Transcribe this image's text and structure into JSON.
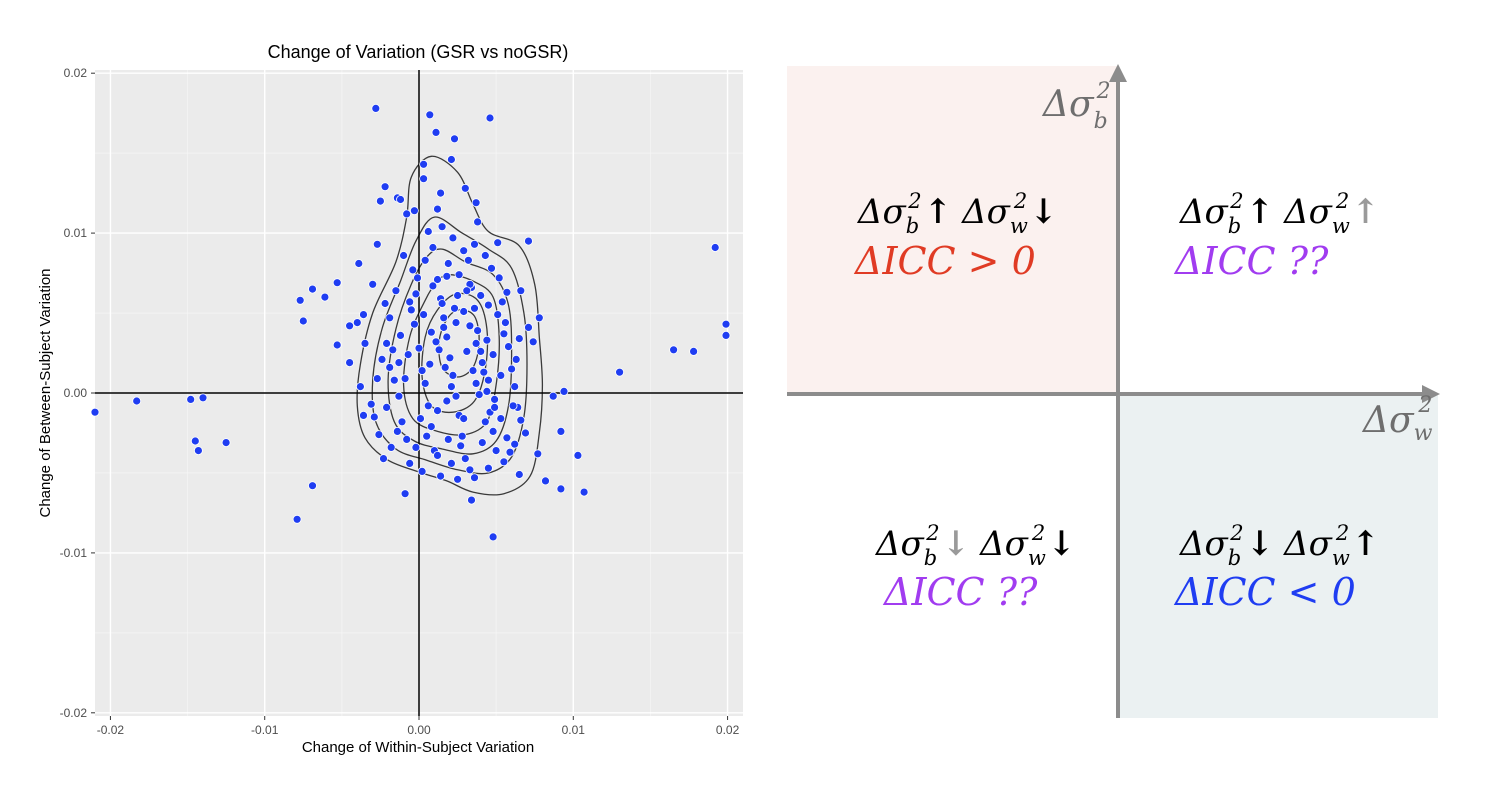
{
  "chart_data": {
    "type": "scatter",
    "title": "Change of Variation (GSR vs noGSR)",
    "xlabel": "Change of Within-Subject Variation",
    "ylabel": "Change of Between-Subject Variation",
    "xlim": [
      -0.021,
      0.021
    ],
    "ylim": [
      -0.0202,
      0.0202
    ],
    "x_ticks": [
      -0.02,
      -0.01,
      0,
      0.01,
      0.02
    ],
    "x_tick_labels": [
      "-0.02",
      "-0.01",
      "0.00",
      "0.01",
      "0.02"
    ],
    "y_ticks": [
      -0.02,
      -0.01,
      0,
      0.01,
      0.02
    ],
    "y_tick_labels": [
      "-0.02",
      "-0.01",
      "0.00",
      "0.01",
      "0.02"
    ],
    "grid": true,
    "background": "#ebebeb",
    "point_color": "#1f3df2",
    "points": [
      [
        -0.021,
        -0.0012
      ],
      [
        -0.0183,
        -0.0005
      ],
      [
        -0.0148,
        -0.0004
      ],
      [
        -0.014,
        -0.0003
      ],
      [
        -0.0145,
        -0.003
      ],
      [
        -0.0143,
        -0.0036
      ],
      [
        -0.0125,
        -0.0031
      ],
      [
        -0.0079,
        -0.0079
      ],
      [
        -0.0069,
        -0.0058
      ],
      [
        -0.0077,
        0.0058
      ],
      [
        -0.0075,
        0.0045
      ],
      [
        -0.0069,
        0.0065
      ],
      [
        -0.0061,
        0.006
      ],
      [
        -0.0053,
        0.0069
      ],
      [
        -0.0053,
        0.003
      ],
      [
        -0.0039,
        0.0081
      ],
      [
        -0.0028,
        0.0178
      ],
      [
        -0.0022,
        0.0129
      ],
      [
        -0.0025,
        0.012
      ],
      [
        -0.0014,
        0.0122
      ],
      [
        -0.0012,
        0.0121
      ],
      [
        -0.0008,
        0.0112
      ],
      [
        -0.0003,
        0.0114
      ],
      [
        -0.0027,
        0.0093
      ],
      [
        -0.0045,
        0.0042
      ],
      [
        -0.004,
        0.0044
      ],
      [
        -0.0036,
        0.0049
      ],
      [
        -0.0035,
        0.0031
      ],
      [
        -0.0045,
        0.0019
      ],
      [
        -0.0038,
        0.0004
      ],
      [
        -0.0036,
        -0.0014
      ],
      [
        -0.0029,
        -0.0015
      ],
      [
        -0.0023,
        -0.0041
      ],
      [
        -0.0009,
        -0.0063
      ],
      [
        0.0007,
        0.0174
      ],
      [
        0.0011,
        0.0163
      ],
      [
        0.0023,
        0.0159
      ],
      [
        0.0046,
        0.0172
      ],
      [
        0.0021,
        0.0146
      ],
      [
        0.0003,
        0.0143
      ],
      [
        0.0003,
        0.0134
      ],
      [
        0.0014,
        0.0125
      ],
      [
        0.003,
        0.0128
      ],
      [
        0.0037,
        0.0119
      ],
      [
        0.0071,
        0.0095
      ],
      [
        0.0192,
        0.0091
      ],
      [
        0.0199,
        0.0043
      ],
      [
        0.0199,
        0.0036
      ],
      [
        0.0165,
        0.0027
      ],
      [
        0.0178,
        0.0026
      ],
      [
        0.013,
        0.0013
      ],
      [
        0.0094,
        0.0001
      ],
      [
        0.0087,
        -0.0002
      ],
      [
        0.0092,
        -0.0024
      ],
      [
        0.0103,
        -0.0039
      ],
      [
        0.0107,
        -0.0062
      ],
      [
        0.0092,
        -0.006
      ],
      [
        0.0048,
        -0.009
      ],
      [
        0.0034,
        -0.0067
      ],
      [
        0.0078,
        0.0047
      ],
      [
        0.0074,
        0.0032
      ],
      [
        0.0066,
        0.0064
      ],
      [
        0.0071,
        0.0041
      ],
      [
        0.0069,
        -0.0025
      ],
      [
        0.0077,
        -0.0038
      ],
      [
        0.0082,
        -0.0055
      ],
      [
        0.0065,
        -0.0051
      ],
      [
        0.0062,
        -0.0032
      ],
      [
        -0.003,
        0.0068
      ],
      [
        -0.0022,
        0.0056
      ],
      [
        -0.0021,
        0.0031
      ],
      [
        -0.0019,
        0.0016
      ],
      [
        -0.0016,
        0.0008
      ],
      [
        -0.0013,
        -0.0002
      ],
      [
        -0.0011,
        -0.0018
      ],
      [
        -0.0008,
        -0.0029
      ],
      [
        -0.0005,
        0.0052
      ],
      [
        -0.0003,
        0.0043
      ],
      [
        0.0,
        0.0028
      ],
      [
        0.0002,
        0.0014
      ],
      [
        0.0004,
        0.0006
      ],
      [
        0.0006,
        -0.0008
      ],
      [
        0.0008,
        -0.0021
      ],
      [
        0.001,
        -0.0036
      ],
      [
        0.0012,
        0.0071
      ],
      [
        0.0014,
        0.0059
      ],
      [
        0.0016,
        0.0047
      ],
      [
        0.0018,
        0.0035
      ],
      [
        0.002,
        0.0022
      ],
      [
        0.0022,
        0.0011
      ],
      [
        0.0024,
        -0.0002
      ],
      [
        0.0026,
        -0.0014
      ],
      [
        0.0028,
        -0.0027
      ],
      [
        0.003,
        -0.0041
      ],
      [
        0.0032,
        0.0083
      ],
      [
        0.0034,
        0.0066
      ],
      [
        0.0036,
        0.0053
      ],
      [
        0.0038,
        0.0039
      ],
      [
        0.004,
        0.0026
      ],
      [
        0.0042,
        0.0013
      ],
      [
        0.0044,
        0.0001
      ],
      [
        0.0046,
        -0.0012
      ],
      [
        0.0048,
        -0.0024
      ],
      [
        0.005,
        -0.0036
      ],
      [
        0.0052,
        0.0072
      ],
      [
        0.0054,
        0.0057
      ],
      [
        0.0056,
        0.0044
      ],
      [
        0.0058,
        0.0029
      ],
      [
        0.006,
        0.0015
      ],
      [
        0.0062,
        0.0004
      ],
      [
        0.0064,
        -0.0009
      ],
      [
        0.0066,
        -0.0017
      ],
      [
        -0.0012,
        0.0036
      ],
      [
        -0.0007,
        0.0024
      ],
      [
        -0.0002,
        0.0062
      ],
      [
        0.0003,
        0.0049
      ],
      [
        0.0008,
        0.0038
      ],
      [
        0.0013,
        0.0027
      ],
      [
        0.0017,
        0.0016
      ],
      [
        0.0021,
        0.0004
      ],
      [
        0.0025,
        0.0061
      ],
      [
        0.0029,
        0.0051
      ],
      [
        0.0033,
        0.0042
      ],
      [
        0.0037,
        0.0031
      ],
      [
        0.0041,
        0.0019
      ],
      [
        0.0045,
        0.0008
      ],
      [
        0.0049,
        -0.0004
      ],
      [
        0.0053,
        -0.0016
      ],
      [
        0.0057,
        -0.0028
      ],
      [
        0.0015,
        0.0104
      ],
      [
        0.0022,
        0.0097
      ],
      [
        0.0029,
        0.0089
      ],
      [
        0.0036,
        0.0093
      ],
      [
        0.0043,
        0.0086
      ],
      [
        0.0047,
        0.0078
      ],
      [
        0.0009,
        0.0091
      ],
      [
        0.0004,
        0.0083
      ],
      [
        -0.0004,
        0.0077
      ],
      [
        0.0019,
        0.0081
      ],
      [
        0.0026,
        0.0074
      ],
      [
        0.0033,
        0.0068
      ],
      [
        0.004,
        0.0061
      ],
      [
        0.0045,
        0.0055
      ],
      [
        0.0051,
        0.0049
      ],
      [
        0.0055,
        0.0037
      ],
      [
        -0.0015,
        0.0064
      ],
      [
        -0.0019,
        0.0047
      ],
      [
        -0.0024,
        0.0021
      ],
      [
        -0.0027,
        0.0009
      ],
      [
        -0.0031,
        -0.0007
      ],
      [
        -0.0026,
        -0.0026
      ],
      [
        -0.0018,
        -0.0034
      ],
      [
        -0.0006,
        -0.0044
      ],
      [
        0.0002,
        -0.0049
      ],
      [
        0.0014,
        -0.0052
      ],
      [
        0.0025,
        -0.0054
      ],
      [
        0.0036,
        -0.0053
      ],
      [
        0.0045,
        -0.0047
      ],
      [
        0.0055,
        -0.0043
      ],
      [
        0.0059,
        -0.0037
      ],
      [
        0.0061,
        -0.0008
      ],
      [
        0.0063,
        0.0021
      ],
      [
        0.0065,
        0.0034
      ],
      [
        0.0057,
        0.0063
      ],
      [
        0.0012,
        -0.0011
      ],
      [
        0.0018,
        -0.0005
      ],
      [
        0.0007,
        0.0018
      ],
      [
        0.0011,
        0.0032
      ],
      [
        0.0016,
        0.0041
      ],
      [
        0.0023,
        0.0053
      ],
      [
        0.0031,
        0.0026
      ],
      [
        0.0035,
        0.0014
      ],
      [
        0.0039,
        -0.0001
      ],
      [
        0.0043,
        -0.0018
      ],
      [
        0.0027,
        -0.0033
      ],
      [
        0.0019,
        -0.0029
      ],
      [
        -0.0009,
        0.0009
      ],
      [
        -0.0013,
        0.0019
      ],
      [
        0.0001,
        -0.0016
      ],
      [
        0.0005,
        -0.0027
      ],
      [
        0.0021,
        -0.0044
      ],
      [
        0.0033,
        -0.0048
      ],
      [
        0.0041,
        -0.0031
      ],
      [
        0.0049,
        -0.0009
      ],
      [
        0.0053,
        0.0011
      ],
      [
        0.0048,
        0.0024
      ],
      [
        0.0024,
        0.0044
      ],
      [
        0.0015,
        0.0056
      ],
      [
        0.0009,
        0.0067
      ],
      [
        -0.0001,
        0.0072
      ],
      [
        -0.0006,
        0.0057
      ],
      [
        -0.0017,
        0.0027
      ],
      [
        -0.0021,
        -0.0009
      ],
      [
        -0.0014,
        -0.0024
      ],
      [
        -0.0002,
        -0.0034
      ],
      [
        0.0012,
        -0.0039
      ],
      [
        0.0029,
        -0.0016
      ],
      [
        0.0037,
        0.0006
      ],
      [
        0.0044,
        0.0033
      ],
      [
        0.0031,
        0.0064
      ],
      [
        0.0018,
        0.0073
      ],
      [
        0.0006,
        0.0101
      ],
      [
        -0.001,
        0.0086
      ],
      [
        0.0012,
        0.0115
      ],
      [
        0.0038,
        0.0107
      ],
      [
        0.0051,
        0.0094
      ]
    ]
  },
  "quadrant_diagram": {
    "axis_y_label": {
      "symbol": "Δσ",
      "sub": "b",
      "sup": "2"
    },
    "axis_x_label": {
      "symbol": "Δσ",
      "sub": "w",
      "sup": "2"
    },
    "quadrants": {
      "top_left": {
        "line1": [
          {
            "symbol": "Δσ",
            "sub": "b",
            "sup": "2",
            "arrow": "↑"
          },
          {
            "symbol": "Δσ",
            "sub": "w",
            "sup": "2",
            "arrow": "↓"
          }
        ],
        "icc_text": "ΔICC > 0",
        "icc_color": "#e03b24",
        "background": "#fbf1ef"
      },
      "top_right": {
        "line1": [
          {
            "symbol": "Δσ",
            "sub": "b",
            "sup": "2",
            "arrow": "↑"
          },
          {
            "symbol": "Δσ",
            "sub": "w",
            "sup": "2",
            "arrow": "↑",
            "arrow_faded": true
          }
        ],
        "icc_text": "ΔICC ??",
        "icc_color": "#a13cf0",
        "background": "#ffffff"
      },
      "bottom_left": {
        "line1": [
          {
            "symbol": "Δσ",
            "sub": "b",
            "sup": "2",
            "arrow": "↓",
            "arrow_faded": true
          },
          {
            "symbol": "Δσ",
            "sub": "w",
            "sup": "2",
            "arrow": "↓"
          }
        ],
        "icc_text": "ΔICC ??",
        "icc_color": "#a13cf0",
        "background": "#ffffff"
      },
      "bottom_right": {
        "line1": [
          {
            "symbol": "Δσ",
            "sub": "b",
            "sup": "2",
            "arrow": "↓"
          },
          {
            "symbol": "Δσ",
            "sub": "w",
            "sup": "2",
            "arrow": "↑"
          }
        ],
        "icc_text": "ΔICC < 0",
        "icc_color": "#1f3df2",
        "background": "#ebf1f2"
      }
    }
  }
}
